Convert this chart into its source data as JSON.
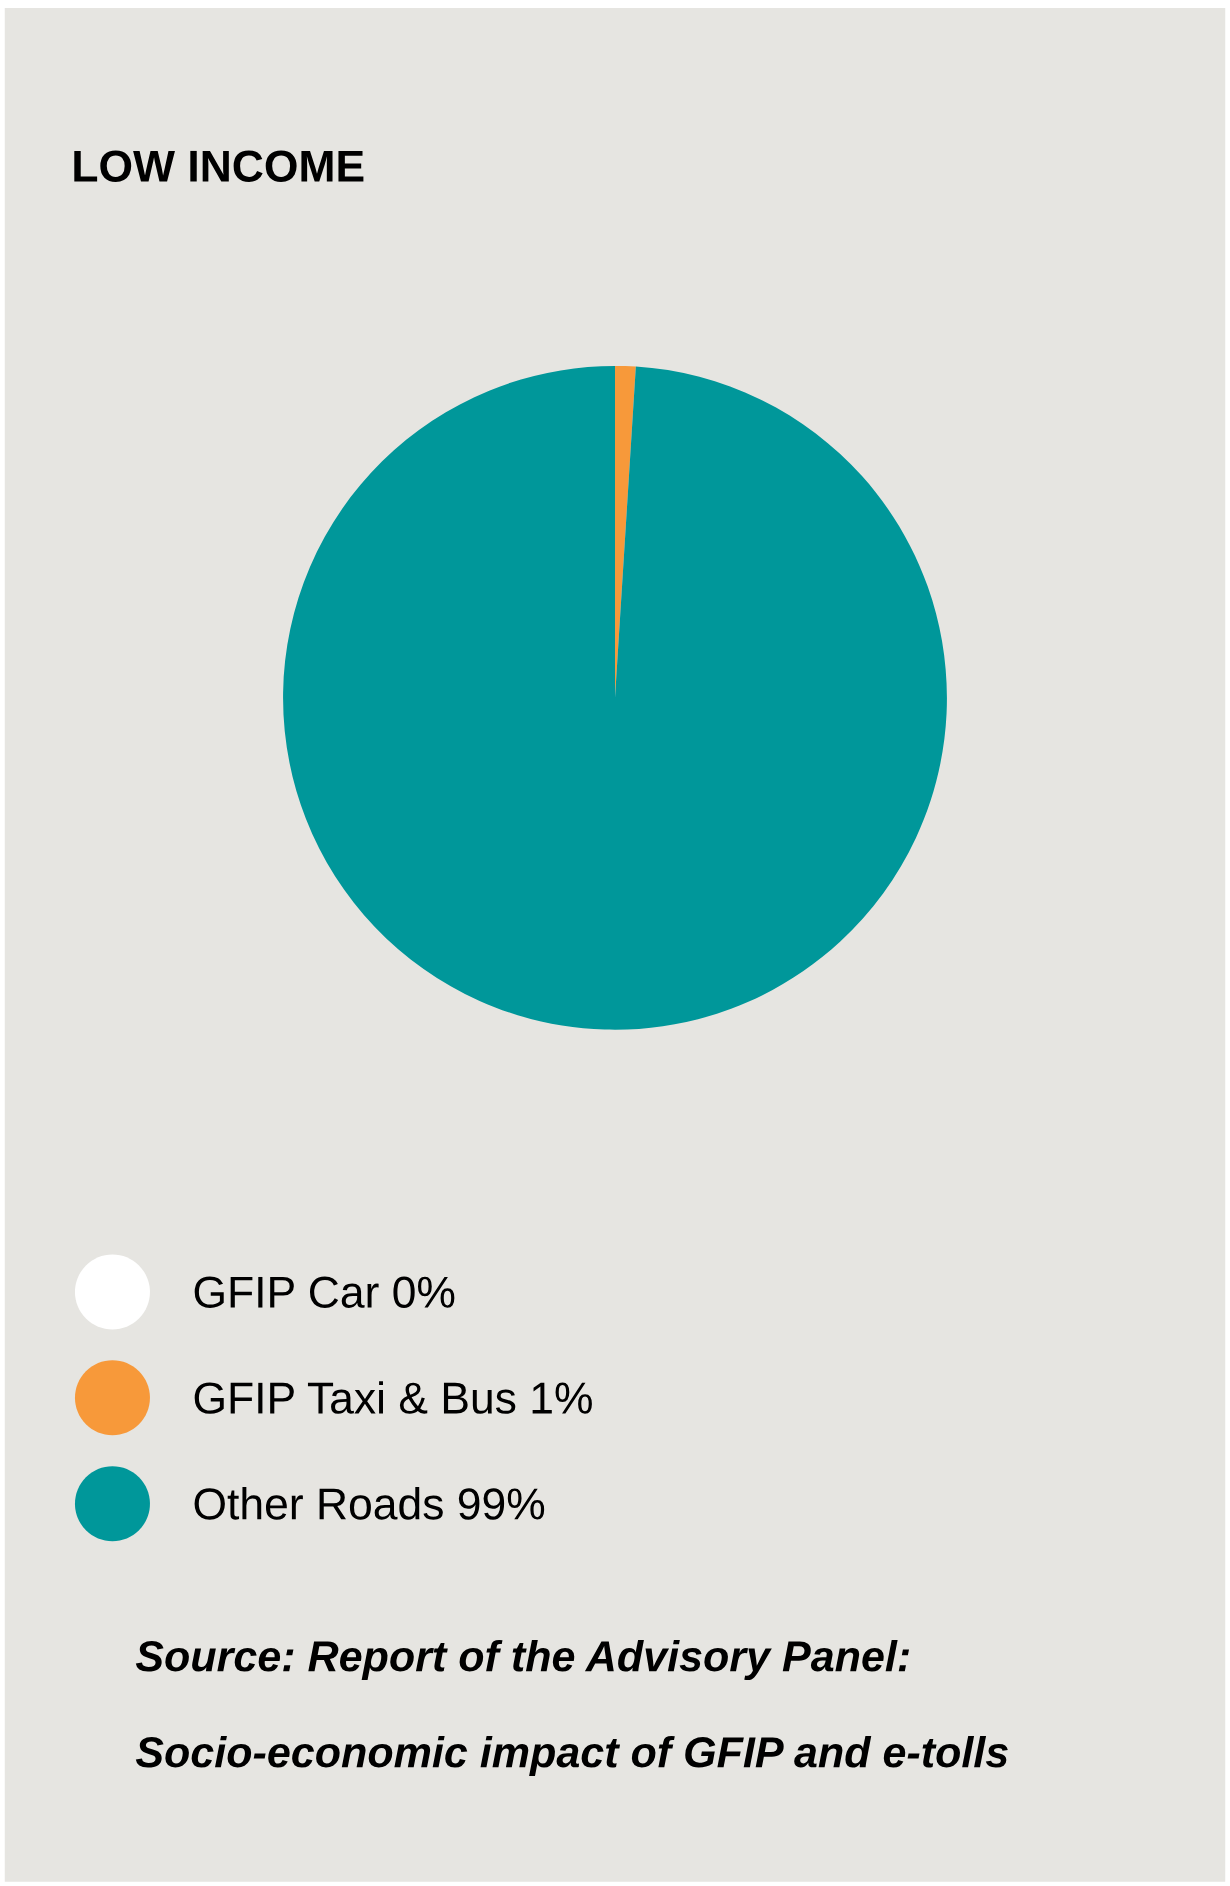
{
  "chart_data": {
    "type": "pie",
    "title": "LOW INCOME",
    "categories": [
      "GFIP Car 0%",
      "GFIP Taxi & Bus 1%",
      "Other Roads 99%"
    ],
    "values": [
      0,
      1,
      99
    ],
    "colors": [
      "#ffffff",
      "#f7993a",
      "#00979a"
    ],
    "legend": "bottom",
    "annotations": [
      "Source: Report of the Advisory Panel:",
      "Socio-economic impact of GFIP and e-tolls"
    ]
  }
}
